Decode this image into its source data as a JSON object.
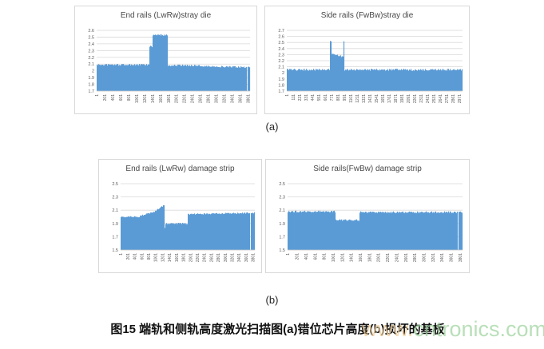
{
  "page": {
    "background": "#ffffff"
  },
  "colors": {
    "bar": "#5B9BD5",
    "grid": "#d9d9d9",
    "axis_line": "#c9c9c9",
    "border": "#d8d8d8",
    "axis_text": "#595959",
    "title_text": "#484848",
    "caption_text": "#111111"
  },
  "labels": {
    "group_a": "(a)",
    "group_b": "(b)"
  },
  "caption": {
    "text": "图15 端轨和侧轨高度激光扫描图(a)错位芯片高度(b)损坏的基板"
  },
  "watermark": {
    "prefix": "www.",
    "rest": "cntronics.com",
    "prefix_color": "#f0cf9a",
    "rest_color": "#9fd49f"
  },
  "chart_data": [
    {
      "type": "area",
      "title": "End rails (LwRw)stray die",
      "xlabel": "",
      "ylabel": "",
      "ylim": [
        1.7,
        2.6
      ],
      "y_ticks": [
        1.7,
        1.8,
        1.9,
        2,
        2.1,
        2.2,
        2.3,
        2.4,
        2.5,
        2.6
      ],
      "xlim": [
        1,
        3860
      ],
      "x_ticks": [
        1,
        201,
        401,
        601,
        801,
        1001,
        1201,
        1401,
        1601,
        1801,
        2001,
        2201,
        2401,
        2601,
        2801,
        3001,
        3201,
        3401,
        3601,
        3801
      ],
      "grid": true,
      "legend": false,
      "noise_amp": 0.012,
      "profile": [
        {
          "from": 1,
          "to": 1330,
          "y": 2.09
        },
        {
          "from": 1330,
          "to": 1400,
          "y": 2.36
        },
        {
          "from": 1400,
          "to": 1780,
          "y": 2.53
        },
        {
          "from": 1780,
          "to": 2600,
          "y": 2.08
        },
        {
          "from": 2600,
          "to": 3860,
          "y0": 2.07,
          "y1": 2.05
        }
      ],
      "gaps": [
        [
          3770,
          3792
        ]
      ]
    },
    {
      "type": "area",
      "title": "Side rails (FwBw)stray die",
      "xlabel": "",
      "ylabel": "",
      "ylim": [
        1.7,
        2.7
      ],
      "y_ticks": [
        1.7,
        1.8,
        1.9,
        2,
        2.1,
        2.2,
        2.3,
        2.4,
        2.5,
        2.6,
        2.7
      ],
      "xlim": [
        1,
        3030
      ],
      "x_ticks": [
        1,
        111,
        221,
        331,
        441,
        551,
        661,
        771,
        881,
        991,
        1101,
        1211,
        1321,
        1431,
        1541,
        1651,
        1761,
        1871,
        1981,
        2091,
        2201,
        2311,
        2421,
        2531,
        2641,
        2751,
        2861,
        2971
      ],
      "grid": true,
      "legend": false,
      "noise_amp": 0.016,
      "profile": [
        {
          "from": 1,
          "to": 745,
          "y": 2.05
        },
        {
          "from": 745,
          "to": 768,
          "y": 2.52
        },
        {
          "from": 768,
          "to": 975,
          "y0": 2.31,
          "y1": 2.27
        },
        {
          "from": 975,
          "to": 998,
          "y": 2.53
        },
        {
          "from": 998,
          "to": 3030,
          "y": 2.05
        }
      ],
      "gaps": []
    },
    {
      "type": "area",
      "title": "End rails (LwRw) damage strip",
      "xlabel": "",
      "ylabel": "",
      "ylim": [
        1.5,
        2.5
      ],
      "y_ticks": [
        1.5,
        1.7,
        1.9,
        2.1,
        2.3,
        2.5
      ],
      "xlim": [
        1,
        3860
      ],
      "x_ticks": [
        1,
        201,
        401,
        601,
        801,
        1001,
        1201,
        1401,
        1601,
        1801,
        2001,
        2201,
        2401,
        2601,
        2801,
        3001,
        3201,
        3401,
        3601,
        3801
      ],
      "grid": true,
      "legend": false,
      "noise_amp": 0.01,
      "profile": [
        {
          "from": 1,
          "to": 550,
          "y": 2.0
        },
        {
          "from": 550,
          "to": 950,
          "y0": 2.01,
          "y1": 2.07
        },
        {
          "from": 950,
          "to": 1265,
          "y0": 2.07,
          "y1": 2.18
        },
        {
          "from": 1265,
          "to": 1290,
          "y": 1.84
        },
        {
          "from": 1290,
          "to": 1930,
          "y": 1.9
        },
        {
          "from": 1930,
          "to": 3860,
          "y0": 2.04,
          "y1": 2.06
        }
      ],
      "gaps": [
        [
          3728,
          3748
        ]
      ]
    },
    {
      "type": "area",
      "title": "Side rails(FwBw) damage strip",
      "xlabel": "",
      "ylabel": "",
      "ylim": [
        1.5,
        2.5
      ],
      "y_ticks": [
        1.5,
        1.7,
        1.9,
        2.1,
        2.3,
        2.5
      ],
      "xlim": [
        1,
        3860
      ],
      "x_ticks": [
        1,
        201,
        401,
        601,
        801,
        1001,
        1201,
        1401,
        1601,
        1801,
        2001,
        2201,
        2401,
        2601,
        2801,
        3001,
        3201,
        3401,
        3601,
        3801
      ],
      "grid": true,
      "legend": false,
      "noise_amp": 0.013,
      "profile": [
        {
          "from": 1,
          "to": 1060,
          "y": 2.08
        },
        {
          "from": 1060,
          "to": 1590,
          "y": 1.95
        },
        {
          "from": 1590,
          "to": 3860,
          "y": 2.07
        }
      ],
      "gaps": [
        [
          3748,
          3768
        ]
      ]
    }
  ]
}
